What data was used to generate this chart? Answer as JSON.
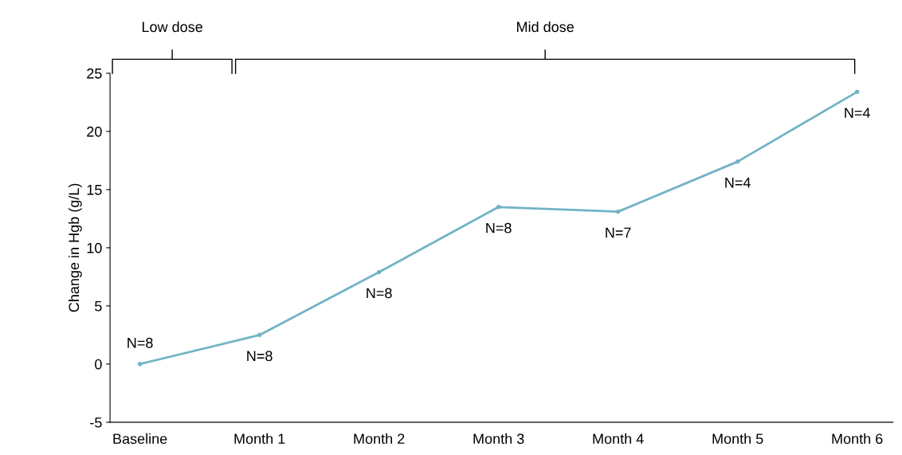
{
  "chart_data": {
    "type": "line",
    "ylabel": "Change in Hgb (g/L)",
    "categories": [
      "Baseline",
      "Month 1",
      "Month 2",
      "Month 3",
      "Month 4",
      "Month 5",
      "Month 6"
    ],
    "series": [
      {
        "color": "#72b3c6",
        "values": [
          0,
          2.5,
          7.9,
          13.5,
          13.1,
          17.4,
          23.4
        ]
      }
    ],
    "ylim": [
      -5,
      25
    ],
    "yticks": [
      -5,
      0,
      5,
      10,
      15,
      20,
      25
    ],
    "grid": false,
    "legend": false,
    "marker": "circle",
    "line_style": "solid",
    "annotations": [
      "N=8",
      "N=8",
      "N=8",
      "N=8",
      "N=7",
      "N=4",
      "N=4",
      "Low dose",
      "Mid dose"
    ]
  }
}
